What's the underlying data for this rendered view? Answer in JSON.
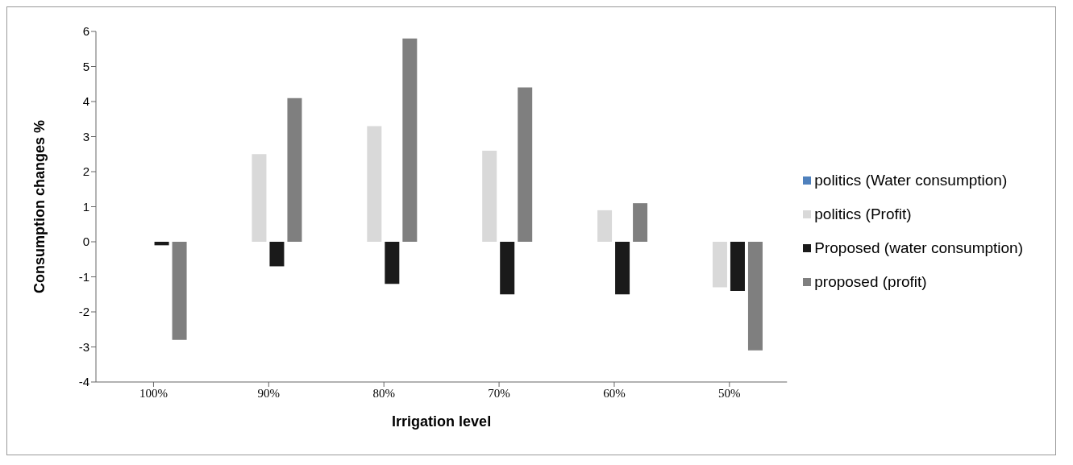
{
  "chart_data": {
    "type": "bar",
    "xlabel": "Irrigation level",
    "ylabel": "Consumption changes %",
    "categories": [
      "100%",
      "90%",
      "80%",
      "70%",
      "60%",
      "50%"
    ],
    "series": [
      {
        "name": "politics (Water consumption)",
        "color": "#4f81bd",
        "values": [
          0,
          0,
          0,
          0,
          0,
          0
        ]
      },
      {
        "name": "politics (Profit)",
        "color": "#d9d9d9",
        "values": [
          0,
          2.5,
          3.3,
          2.6,
          0.9,
          -1.3
        ]
      },
      {
        "name": "Proposed (water consumption)",
        "color": "#1a1a1a",
        "values": [
          -0.1,
          -0.7,
          -1.2,
          -1.5,
          -1.5,
          -1.4
        ]
      },
      {
        "name": "proposed (profit)",
        "color": "#7f7f7f",
        "values": [
          -2.8,
          4.1,
          5.8,
          4.4,
          1.1,
          -3.1
        ]
      }
    ],
    "ylim": [
      -4,
      6
    ],
    "yticks": [
      -4,
      -3,
      -2,
      -1,
      0,
      1,
      2,
      3,
      4,
      5,
      6
    ],
    "legend": "right"
  }
}
